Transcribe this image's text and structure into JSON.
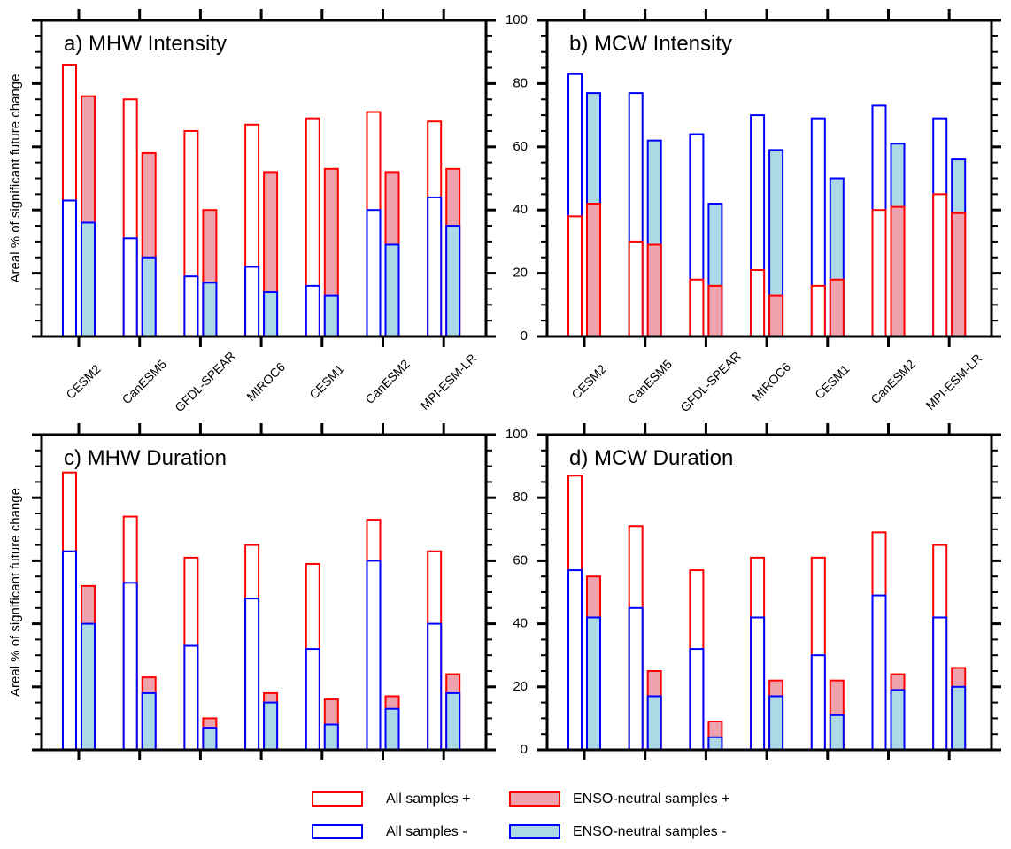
{
  "chart_data": [
    {
      "type": "bar",
      "panel": "a",
      "title": "a) MHW Intensity",
      "ylabel": "Areal % of significant future change",
      "ylim": [
        0,
        100
      ],
      "yticks_labeled": false,
      "xticks_labeled": true,
      "categories": [
        "CESM2",
        "CanESM5",
        "GFDL-SPEAR",
        "MIROC6",
        "CESM1",
        "CanESM2",
        "MPI-ESM-LR"
      ],
      "series": [
        {
          "name": "All samples +",
          "values": [
            86,
            75,
            65,
            67,
            69,
            71,
            68
          ]
        },
        {
          "name": "All samples -",
          "values": [
            43,
            31,
            19,
            22,
            16,
            40,
            44
          ]
        },
        {
          "name": "ENSO-neutral samples +",
          "values": [
            76,
            58,
            40,
            52,
            53,
            52,
            53
          ]
        },
        {
          "name": "ENSO-neutral samples -",
          "values": [
            36,
            25,
            17,
            14,
            13,
            29,
            35
          ]
        }
      ]
    },
    {
      "type": "bar",
      "panel": "b",
      "title": "b) MCW Intensity",
      "ylabel": "",
      "ylim": [
        0,
        100
      ],
      "yticks": [
        0,
        20,
        40,
        60,
        80,
        100
      ],
      "yticks_labeled": true,
      "xticks_labeled": true,
      "categories": [
        "CESM2",
        "CanESM5",
        "GFDL-SPEAR",
        "MIROC6",
        "CESM1",
        "CanESM2",
        "MPI-ESM-LR"
      ],
      "series": [
        {
          "name": "All samples +",
          "values": [
            38,
            30,
            18,
            21,
            16,
            40,
            45
          ]
        },
        {
          "name": "All samples -",
          "values": [
            83,
            77,
            64,
            70,
            69,
            73,
            69
          ]
        },
        {
          "name": "ENSO-neutral samples +",
          "values": [
            42,
            29,
            16,
            13,
            18,
            41,
            39
          ]
        },
        {
          "name": "ENSO-neutral samples -",
          "values": [
            77,
            62,
            42,
            59,
            50,
            61,
            56
          ]
        }
      ]
    },
    {
      "type": "bar",
      "panel": "c",
      "title": "c) MHW Duration",
      "ylabel": "Areal % of significant future change",
      "ylim": [
        0,
        100
      ],
      "yticks_labeled": false,
      "xticks_labeled": false,
      "categories": [
        "CESM2",
        "CanESM5",
        "GFDL-SPEAR",
        "MIROC6",
        "CESM1",
        "CanESM2",
        "MPI-ESM-LR"
      ],
      "series": [
        {
          "name": "All samples +",
          "values": [
            88,
            74,
            61,
            65,
            59,
            73,
            63
          ]
        },
        {
          "name": "All samples -",
          "values": [
            63,
            53,
            33,
            48,
            32,
            60,
            40
          ]
        },
        {
          "name": "ENSO-neutral samples +",
          "values": [
            52,
            23,
            10,
            18,
            16,
            17,
            24
          ]
        },
        {
          "name": "ENSO-neutral samples -",
          "values": [
            40,
            18,
            7,
            15,
            8,
            13,
            18
          ]
        }
      ]
    },
    {
      "type": "bar",
      "panel": "d",
      "title": "d) MCW Duration",
      "ylabel": "",
      "ylim": [
        0,
        100
      ],
      "yticks": [
        0,
        20,
        40,
        60,
        80,
        100
      ],
      "yticks_labeled": true,
      "xticks_labeled": false,
      "categories": [
        "CESM2",
        "CanESM5",
        "GFDL-SPEAR",
        "MIROC6",
        "CESM1",
        "CanESM2",
        "MPI-ESM-LR"
      ],
      "series": [
        {
          "name": "All samples +",
          "values": [
            87,
            71,
            57,
            61,
            61,
            69,
            65
          ]
        },
        {
          "name": "All samples -",
          "values": [
            57,
            45,
            32,
            42,
            30,
            49,
            42
          ]
        },
        {
          "name": "ENSO-neutral samples +",
          "values": [
            55,
            25,
            9,
            22,
            22,
            24,
            26
          ]
        },
        {
          "name": "ENSO-neutral samples -",
          "values": [
            42,
            17,
            4,
            17,
            11,
            19,
            20
          ]
        }
      ]
    }
  ],
  "legend": {
    "position": "bottom-center",
    "items": [
      {
        "label": "All samples +",
        "stroke": "#ff0000",
        "fill": "#ffffff"
      },
      {
        "label": "ENSO-neutral samples +",
        "stroke": "#ff0000",
        "fill": "#eea2ad"
      },
      {
        "label": "All samples -",
        "stroke": "#0000ff",
        "fill": "#ffffff"
      },
      {
        "label": "ENSO-neutral samples -",
        "stroke": "#0000ff",
        "fill": "#add8e6"
      }
    ]
  },
  "colors": {
    "positive_outline": "#ff0000",
    "negative_outline": "#0000ff",
    "positive_fill": "#eea2ad",
    "negative_fill": "#add8e6"
  }
}
